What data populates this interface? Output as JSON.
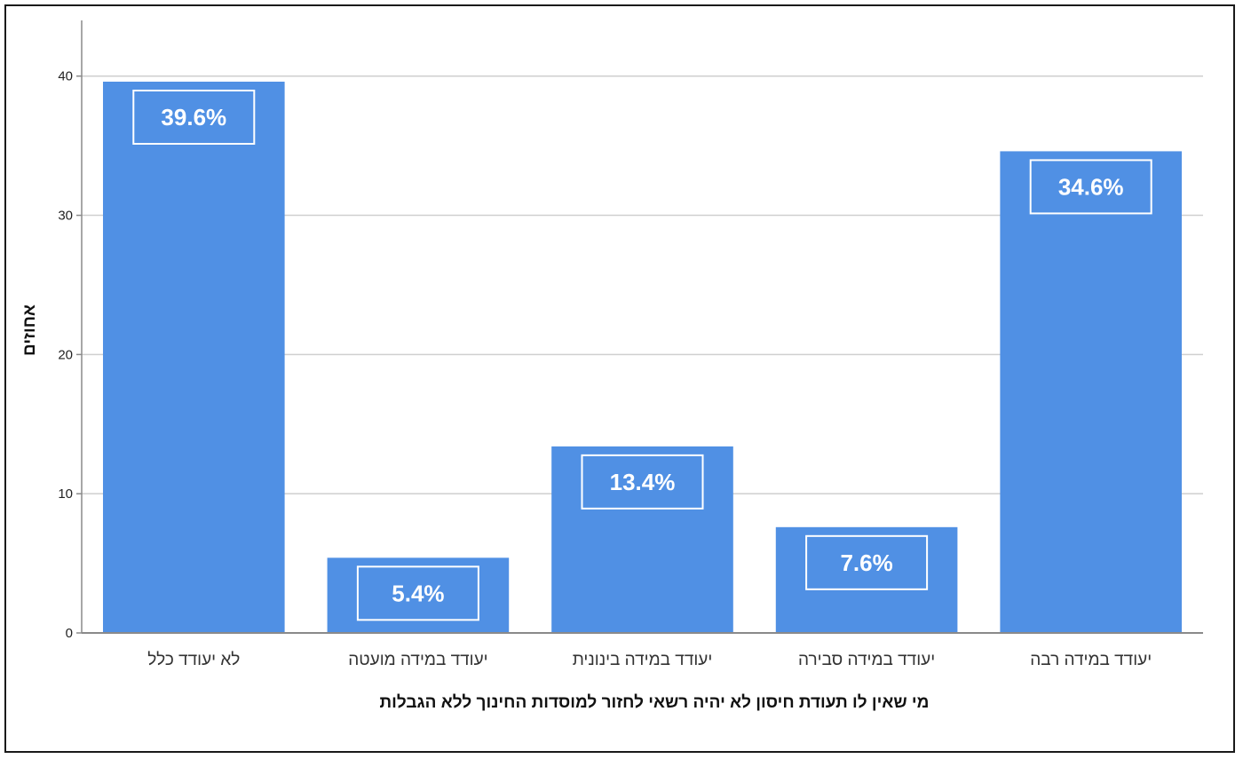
{
  "chart_data": {
    "type": "bar",
    "categories": [
      "לא יעודד כלל",
      "יעודד במידה מועטה",
      "יעודד במידה בינונית",
      "יעודד במידה סבירה",
      "יעודד במידה רבה"
    ],
    "values": [
      39.6,
      5.4,
      13.4,
      7.6,
      34.6
    ],
    "data_labels": [
      "39.6%",
      "5.4%",
      "13.4%",
      "7.6%",
      "34.6%"
    ],
    "xlabel": "מי שאין לו תעודת חיסון לא יהיה רשאי לחזור למוסדות החינוך ללא הגבלות",
    "ylabel": "אחוזים",
    "ylim": [
      0,
      44
    ],
    "yticks": [
      0,
      10,
      20,
      30,
      40
    ],
    "grid": true,
    "bar_color": "#5090e4",
    "grid_color": "#cfcfcf",
    "axis_color": "#8a8a8a"
  }
}
